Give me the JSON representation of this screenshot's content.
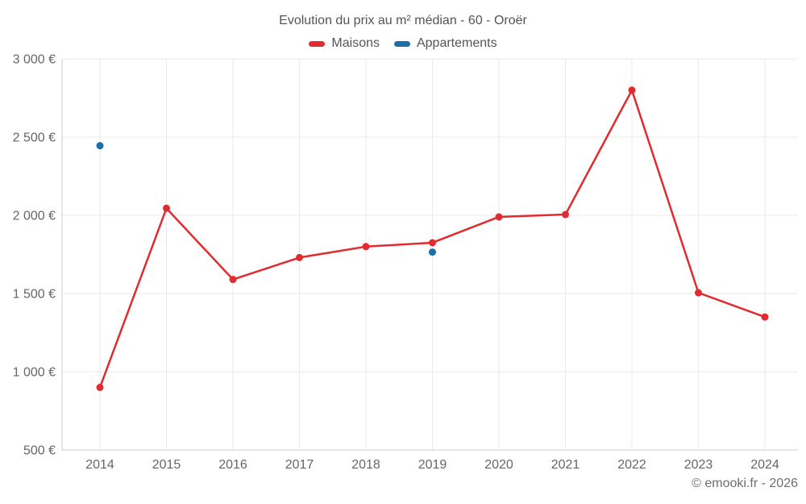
{
  "chart_data": {
    "type": "line",
    "title": "Evolution du prix au m² médian - 60 - Oroër",
    "footer": "© emooki.fr - 2026",
    "x": [
      "2014",
      "2015",
      "2016",
      "2017",
      "2018",
      "2019",
      "2020",
      "2021",
      "2022",
      "2023",
      "2024"
    ],
    "series": [
      {
        "name": "Maisons",
        "color": "#e12b2f",
        "style": "line+markers",
        "values": [
          900,
          2045,
          1590,
          1730,
          1800,
          1825,
          1990,
          2005,
          2800,
          1505,
          1350
        ]
      },
      {
        "name": "Appartements",
        "color": "#1c6fa8",
        "style": "markers",
        "values": [
          2445,
          null,
          null,
          null,
          null,
          1765,
          null,
          null,
          null,
          null,
          null
        ]
      }
    ],
    "ylim": [
      500,
      3000
    ],
    "yticks": [
      {
        "value": 500,
        "label": "500 €"
      },
      {
        "value": 1000,
        "label": "1 000 €"
      },
      {
        "value": 1500,
        "label": "1 500 €"
      },
      {
        "value": 2000,
        "label": "2 000 €"
      },
      {
        "value": 2500,
        "label": "2 500 €"
      },
      {
        "value": 3000,
        "label": "3 000 €"
      }
    ],
    "grid": true,
    "legend_position": "top"
  },
  "colors": {
    "grid": "#e9e9e9",
    "axis": "#cccccc",
    "tick_text": "#666666",
    "title_text": "#545454",
    "footer_text": "#6e6e6e"
  }
}
